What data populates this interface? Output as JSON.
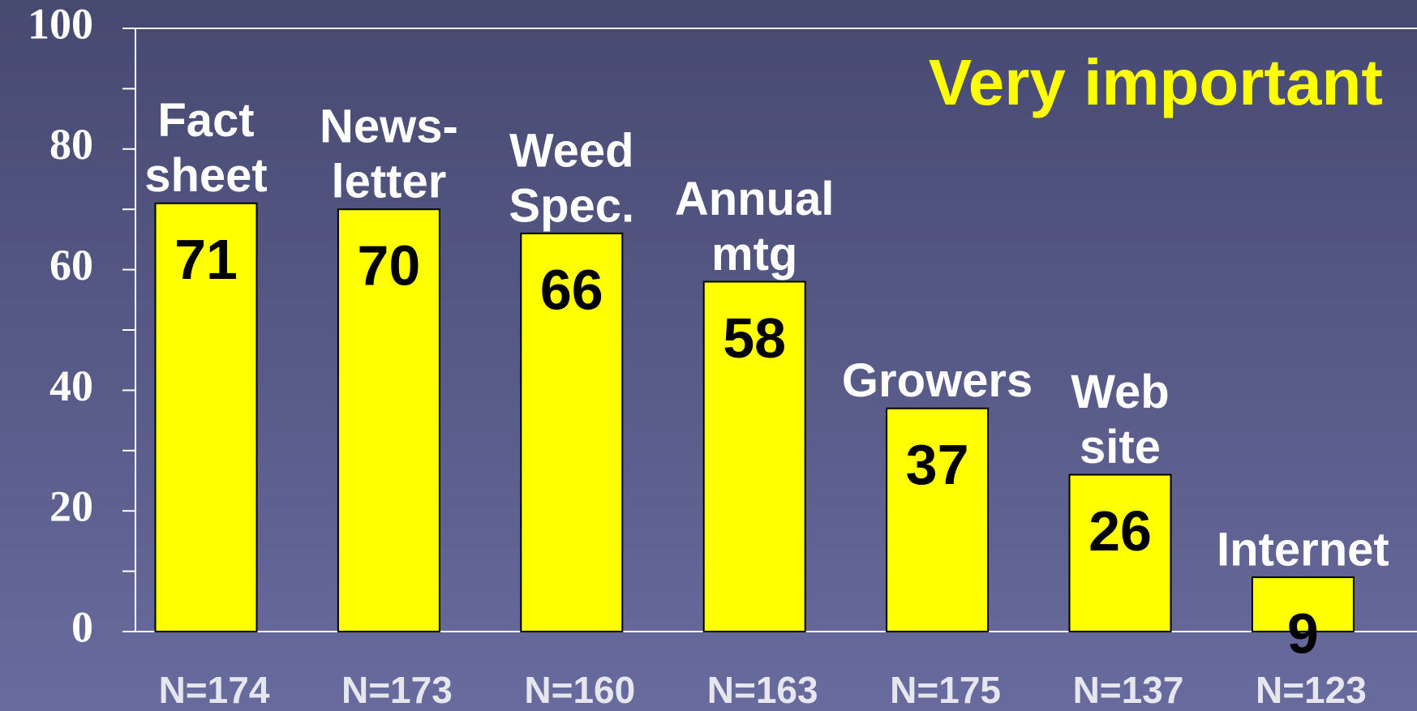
{
  "chart_data": {
    "type": "bar",
    "categories": [
      [
        "Fact",
        "sheet"
      ],
      [
        "News-",
        "letter"
      ],
      [
        "Weed",
        "Spec."
      ],
      [
        "Annual",
        "mtg"
      ],
      [
        "Growers"
      ],
      [
        "Web",
        "site"
      ],
      [
        "Internet"
      ]
    ],
    "values": [
      71,
      70,
      66,
      58,
      37,
      26,
      9
    ],
    "sample_sizes": [
      "N=174",
      "N=173",
      "N=160",
      "N=163",
      "N=175",
      "N=137",
      "N=123"
    ],
    "annotation": "Very  important",
    "color": "#ffff00",
    "ylim": [
      0,
      100
    ],
    "yticks": [
      0,
      20,
      40,
      60,
      80,
      100
    ],
    "minor_yticks": [
      10,
      30,
      50,
      70,
      90
    ]
  }
}
